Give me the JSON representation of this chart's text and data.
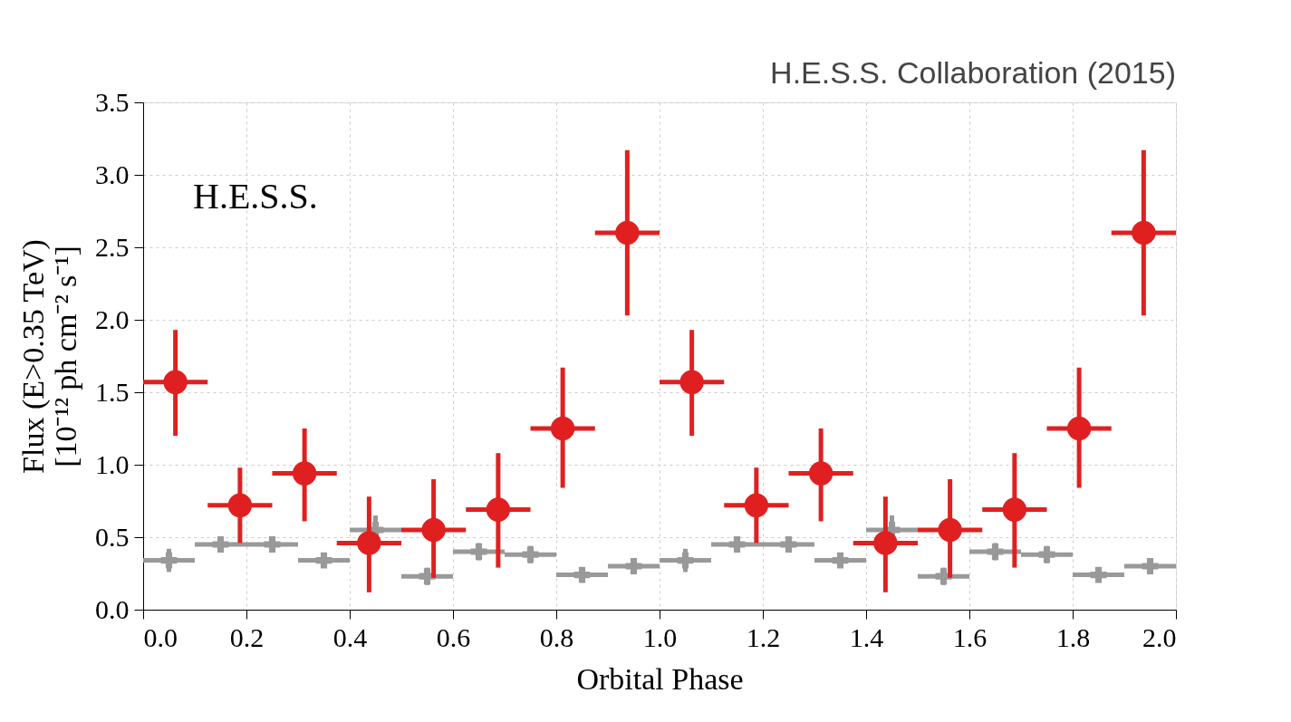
{
  "chart_data": {
    "type": "scatter",
    "xlabel": "Orbital Phase",
    "ylabel": "Flux (E>0.35 TeV)\n[10⁻¹² ph cm⁻² s⁻¹]",
    "annotations": [
      "H.E.S.S. Collaboration (2015)",
      "H.E.S.S."
    ],
    "xlim": [
      0,
      2.0
    ],
    "ylim": [
      0,
      3.5
    ],
    "xticks": [
      {
        "value": 0,
        "label": "0.0"
      },
      0.2,
      0.4,
      0.6,
      0.8,
      {
        "value": 1,
        "label": "1.0"
      },
      1.2,
      1.4,
      1.6,
      1.8,
      {
        "value": 2,
        "label": "2.0"
      }
    ],
    "yticks": [
      {
        "value": 0,
        "label": "0.0"
      },
      0.5,
      {
        "value": 1,
        "label": "1.0"
      },
      1.5,
      {
        "value": 2,
        "label": "2.0"
      },
      2.5,
      {
        "value": 3,
        "label": "3.0"
      },
      3.5
    ],
    "grid": true,
    "series": [
      {
        "color": "#999999",
        "marker": "cross",
        "x": [
          0.05,
          0.15,
          0.25,
          0.35,
          0.45,
          0.55,
          0.65,
          0.75,
          0.85,
          0.95,
          1.05,
          1.15,
          1.25,
          1.35,
          1.45,
          1.55,
          1.65,
          1.75,
          1.85,
          1.95
        ],
        "values": [
          0.34,
          0.45,
          0.45,
          0.34,
          0.55,
          0.23,
          0.4,
          0.38,
          0.24,
          0.3,
          0.34,
          0.45,
          0.45,
          0.34,
          0.55,
          0.23,
          0.4,
          0.38,
          0.24,
          0.3
        ],
        "errors": [
          0.08,
          0.05,
          0.05,
          0.05,
          0.1,
          0.06,
          0.06,
          0.06,
          0.04,
          0.04,
          0.08,
          0.05,
          0.05,
          0.05,
          0.1,
          0.06,
          0.06,
          0.06,
          0.04,
          0.04
        ],
        "xerrors": [
          0.05,
          0.05,
          0.05,
          0.05,
          0.05,
          0.05,
          0.05,
          0.05,
          0.05,
          0.05,
          0.05,
          0.05,
          0.05,
          0.05,
          0.05,
          0.05,
          0.05,
          0.05,
          0.05,
          0.05
        ]
      },
      {
        "color": "#e02020",
        "marker": "circle",
        "x": [
          0.0625,
          0.1875,
          0.3125,
          0.4375,
          0.5625,
          0.6875,
          0.8125,
          0.9375,
          1.0625,
          1.1875,
          1.3125,
          1.4375,
          1.5625,
          1.6875,
          1.8125,
          1.9375
        ],
        "values": [
          1.57,
          0.72,
          0.94,
          0.46,
          0.55,
          0.69,
          1.25,
          2.6,
          1.57,
          0.72,
          0.94,
          0.46,
          0.55,
          0.69,
          1.25,
          2.6
        ],
        "errors": [
          [
            1.2,
            1.93
          ],
          [
            0.46,
            0.98
          ],
          [
            0.61,
            1.25
          ],
          [
            0.12,
            0.78
          ],
          [
            0.22,
            0.9
          ],
          [
            0.29,
            1.08
          ],
          [
            0.84,
            1.67
          ],
          [
            2.03,
            3.17
          ],
          [
            1.2,
            1.93
          ],
          [
            0.46,
            0.98
          ],
          [
            0.61,
            1.25
          ],
          [
            0.12,
            0.78
          ],
          [
            0.22,
            0.9
          ],
          [
            0.29,
            1.08
          ],
          [
            0.84,
            1.67
          ],
          [
            2.03,
            3.17
          ]
        ],
        "xerrors": [
          0.0625,
          0.0625,
          0.0625,
          0.0625,
          0.0625,
          0.0625,
          0.0625,
          0.0625,
          0.0625,
          0.0625,
          0.0625,
          0.0625,
          0.0625,
          0.0625,
          0.0625,
          0.0625
        ]
      }
    ]
  }
}
